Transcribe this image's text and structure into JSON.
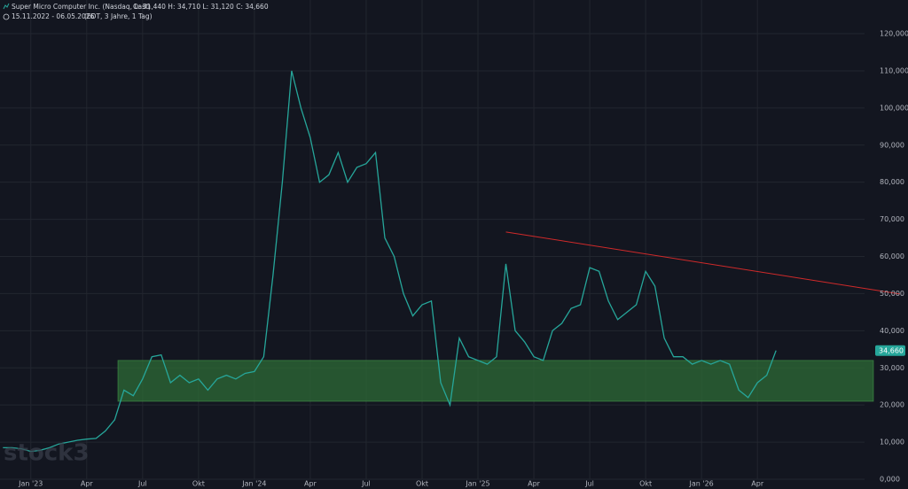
{
  "header": {
    "title": "Super Micro Computer Inc. (Nasdaq, Last)",
    "ohlc": "O: 31,440  H: 34,710  L: 31,120  C: 34,660",
    "range": "15.11.2022 - 06.05.2026",
    "detail": "(EDT, 3 Jahre, 1 Tag)"
  },
  "chart_data": {
    "type": "line",
    "watermark": "stock3",
    "categories": [
      null,
      null,
      null,
      "Jan '23",
      null,
      null,
      null,
      null,
      null,
      "Apr",
      null,
      null,
      null,
      null,
      null,
      "Jul",
      null,
      null,
      null,
      null,
      null,
      "Okt",
      null,
      null,
      null,
      null,
      null,
      "Jan '24",
      null,
      null,
      null,
      null,
      null,
      "Apr",
      null,
      null,
      null,
      null,
      null,
      "Jul",
      null,
      null,
      null,
      null,
      null,
      "Okt",
      null,
      null,
      null,
      null,
      null,
      "Jan '25",
      null,
      null,
      null,
      null,
      null,
      "Apr",
      null,
      null,
      null,
      null,
      null,
      "Jul",
      null,
      null,
      null,
      null,
      null,
      "Okt",
      null,
      null,
      null,
      null,
      null,
      "Jan '26",
      null,
      null,
      null,
      null,
      null,
      "Apr",
      null,
      null,
      null,
      null,
      null,
      null,
      null,
      null,
      null,
      null,
      null
    ],
    "series": [
      {
        "name": "Super Micro Computer Inc.",
        "color": "#26a69a",
        "values": [
          8.5,
          8.5,
          8.2,
          7.5,
          7.8,
          8.5,
          9.5,
          10,
          10.5,
          10.8,
          11,
          13,
          16,
          24,
          22.5,
          27,
          33,
          33.5,
          26,
          28,
          26,
          27,
          24,
          27,
          28,
          27,
          28.5,
          29,
          33,
          55,
          80,
          110,
          100,
          92,
          80,
          82,
          88,
          80,
          84,
          85,
          88,
          65,
          60,
          50,
          44,
          47,
          48,
          26,
          20,
          38,
          33,
          32,
          31,
          33,
          58,
          40,
          37,
          33,
          32,
          40,
          42,
          46,
          47,
          57,
          56,
          48,
          43,
          45,
          47,
          56,
          52,
          38,
          33,
          33,
          31,
          32,
          31,
          32,
          31,
          24,
          22,
          26,
          28,
          34.66,
          null,
          null,
          null,
          null,
          null,
          null,
          null,
          null,
          null
        ]
      }
    ],
    "ylim": [
      0,
      124.3
    ],
    "yticks": [
      {
        "value": 0,
        "label": "0,000"
      },
      {
        "value": 10,
        "label": "10,000"
      },
      {
        "value": 20,
        "label": "20,000"
      },
      {
        "value": 30,
        "label": "30,000"
      },
      {
        "value": 40,
        "label": "40,000"
      },
      {
        "value": 50,
        "label": "50,000"
      },
      {
        "value": 60,
        "label": "60,000"
      },
      {
        "value": 70,
        "label": "70,000"
      },
      {
        "value": 80,
        "label": "80,000"
      },
      {
        "value": 90,
        "label": "90,000"
      },
      {
        "value": 100,
        "label": "100,000"
      },
      {
        "value": 110,
        "label": "110,000"
      },
      {
        "value": 120,
        "label": "120,000"
      }
    ],
    "grid": true,
    "last_price": {
      "value": 34.66,
      "label": "34,660",
      "color": "#26a69a"
    },
    "support_zone": {
      "ylim": [
        21,
        32
      ],
      "color": "#2e6b35"
    },
    "trendline": {
      "values": [
        66.6,
        49.9
      ],
      "color": "#d02a2a"
    }
  }
}
